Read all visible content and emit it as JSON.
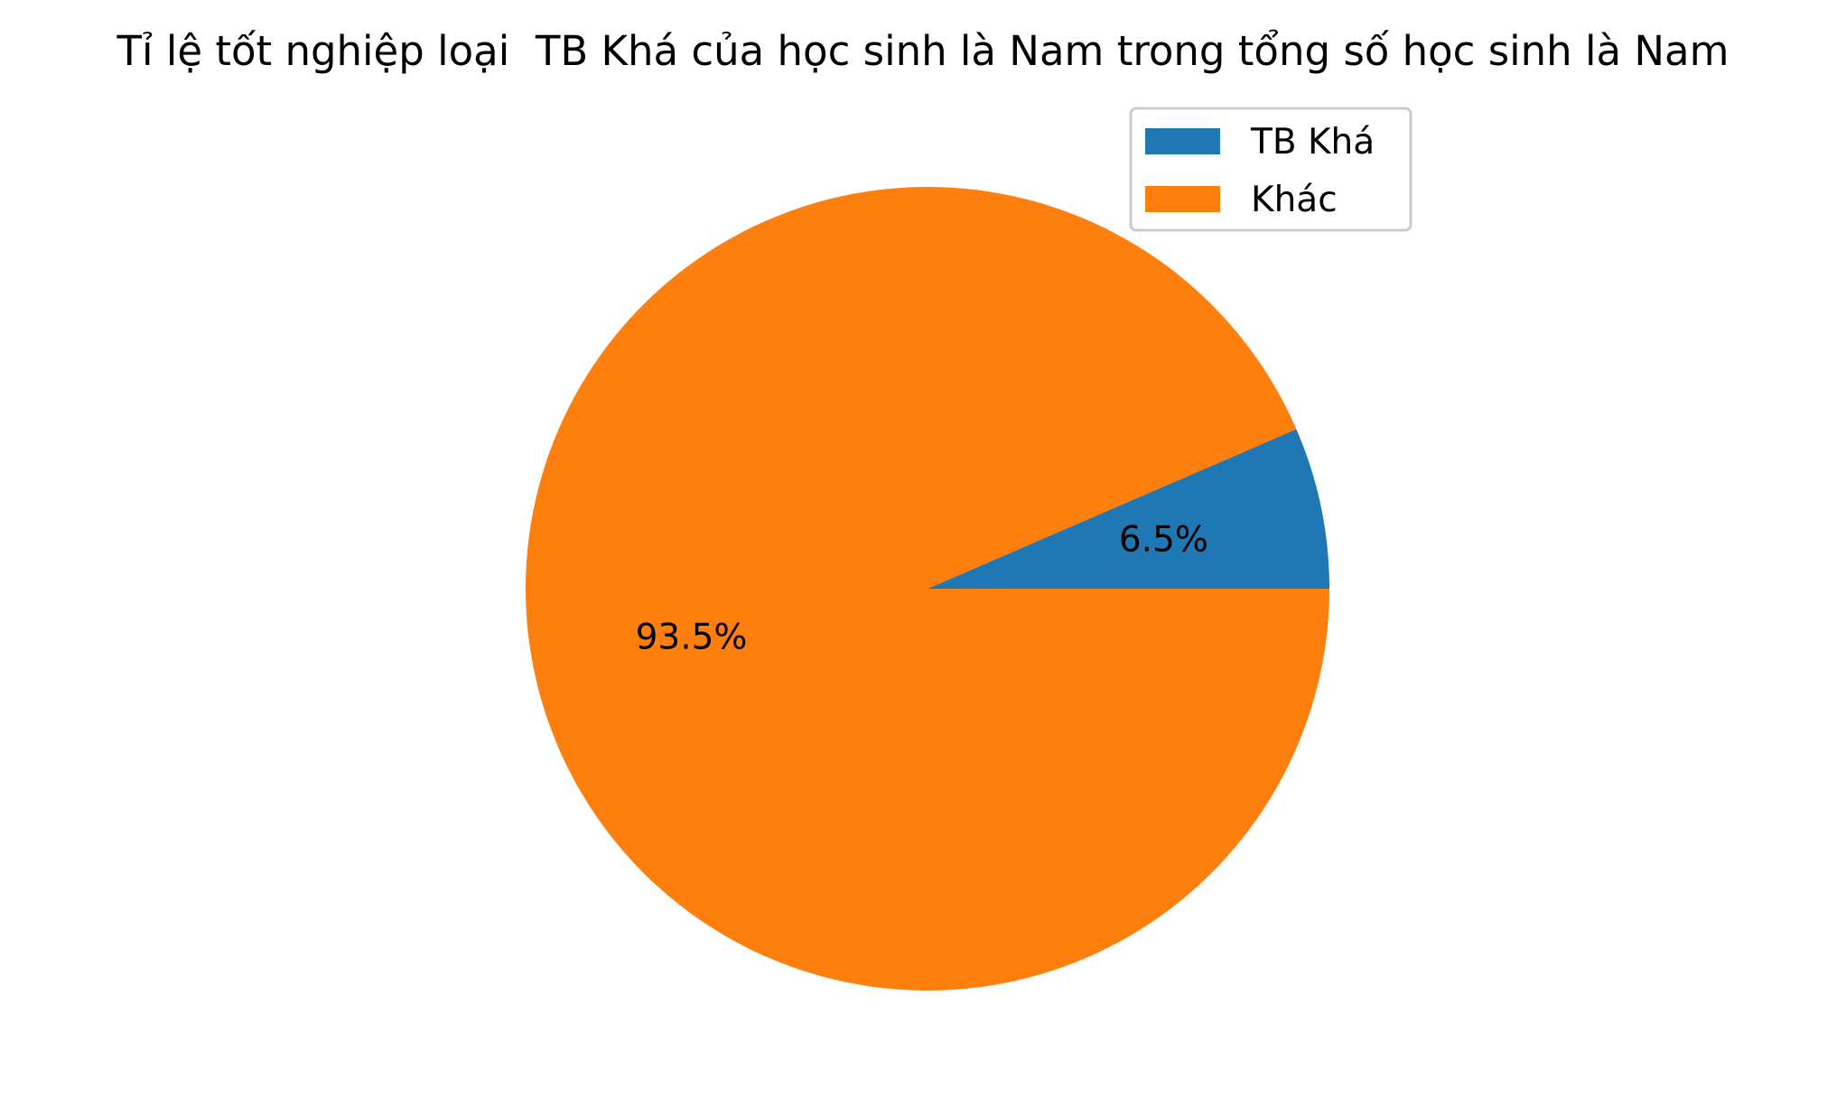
{
  "chart_data": {
    "type": "pie",
    "title": "Tỉ lệ tốt nghiệp loại  TB Khá của học sinh là Nam trong tổng số học sinh là Nam",
    "slices": [
      {
        "label": " TB Khá",
        "value": 6.5,
        "pct_label": "6.5%",
        "color": "#1f77b4"
      },
      {
        "label": "Khác",
        "value": 93.5,
        "pct_label": "93.5%",
        "color": "#ff7f0e"
      }
    ],
    "start_angle_deg": 0,
    "direction": "counterclockwise",
    "legend": {
      "placement": "upper-right"
    }
  }
}
